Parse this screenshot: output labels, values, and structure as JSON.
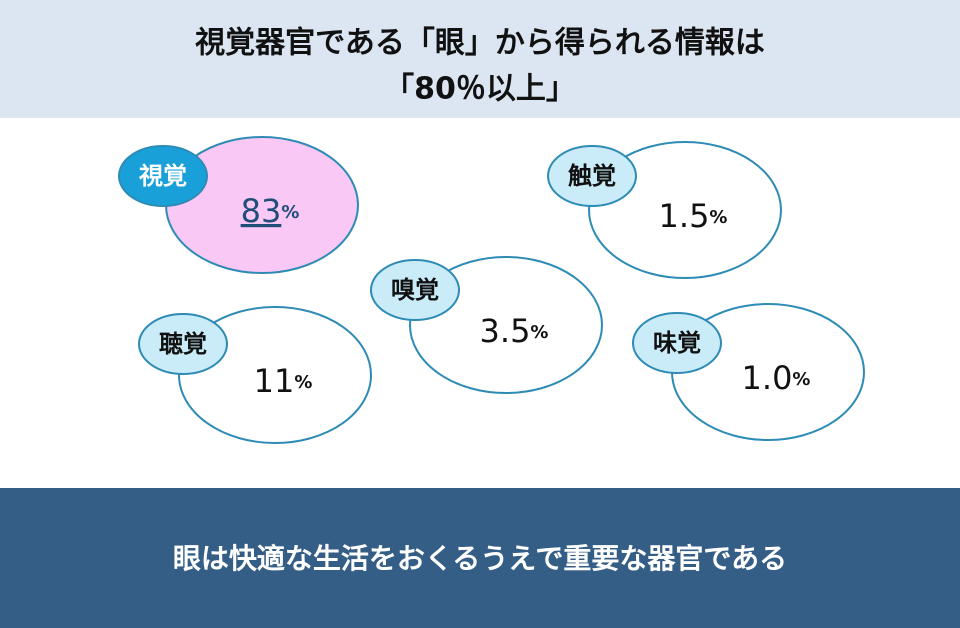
{
  "header": {
    "title_line1": "視覚器官である「眼」から得られる情報は",
    "title_line2": "「80％以上」"
  },
  "nodes": [
    {
      "label": "視覚",
      "value": "83",
      "unit": "%"
    },
    {
      "label": "聴覚",
      "value": "11",
      "unit": "%"
    },
    {
      "label": "嗅覚",
      "value": "3.5",
      "unit": "%"
    },
    {
      "label": "触覚",
      "value": "1.5",
      "unit": "%"
    },
    {
      "label": "味覚",
      "value": "1.0",
      "unit": "%"
    }
  ],
  "footer": {
    "text": "眼は快適な生活をおくるうえで重要な器官である"
  }
}
